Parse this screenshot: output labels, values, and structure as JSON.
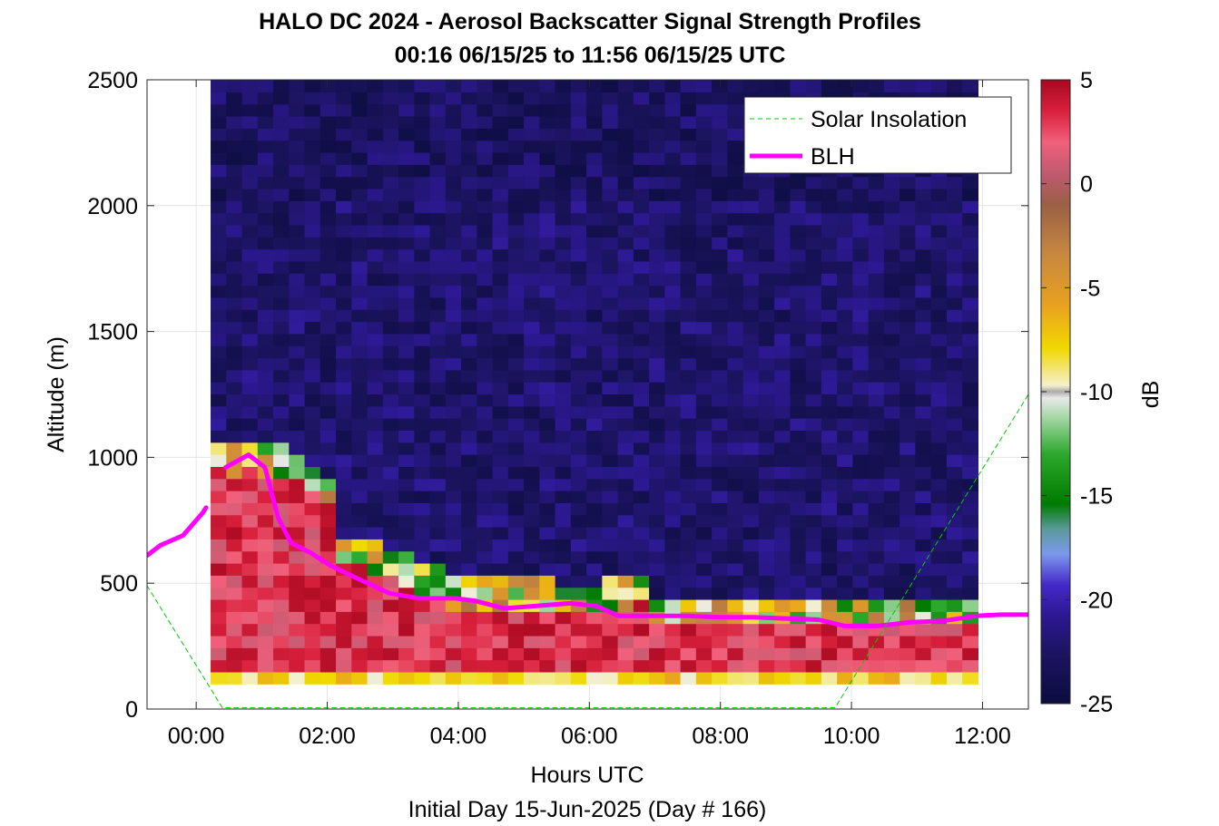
{
  "chart_data": {
    "type": "heatmap",
    "title": "HALO DC 2024 - Aerosol Backscatter Signal Strength Profiles",
    "subtitle": "00:16 06/15/25 to 11:56 06/15/25  UTC",
    "xlabel": "Hours UTC",
    "x_sublabel": "Initial Day 15-Jun-2025 (Day # 166)",
    "ylabel": "Altitude (m)",
    "xlim": [
      -0.75,
      12.7
    ],
    "ylim": [
      0,
      2500
    ],
    "x_ticks": [
      0,
      2,
      4,
      6,
      8,
      10,
      12
    ],
    "x_tick_labels": [
      "00:00",
      "02:00",
      "04:00",
      "06:00",
      "08:00",
      "10:00",
      "12:00"
    ],
    "y_ticks": [
      0,
      500,
      1000,
      1500,
      2000,
      2500
    ],
    "y_tick_labels": [
      "0",
      "500",
      "1000",
      "1500",
      "2000",
      "2500"
    ],
    "grid": true,
    "colorbar": {
      "label": "dB",
      "range": [
        -25,
        5
      ],
      "ticks": [
        5,
        0,
        -5,
        -10,
        -15,
        -20,
        -25
      ],
      "tick_labels": [
        "5",
        "0",
        "-5",
        "-10",
        "-15",
        "-20",
        "-25"
      ]
    },
    "legend": {
      "placement": "top-right",
      "entries": [
        "Solar Insolation",
        "BLH"
      ]
    },
    "heatmap": {
      "x_start": 0.22,
      "x_end": 11.93,
      "columns": 49,
      "y_bottom": 100,
      "y_top": 2500,
      "bins": 50,
      "bin_height_m": 48,
      "boundary_layer_top_m": [
        1020,
        1000,
        1010,
        1000,
        980,
        960,
        920,
        880,
        640,
        620,
        600,
        580,
        560,
        520,
        500,
        470,
        470,
        470,
        470,
        460,
        460,
        470,
        440,
        440,
        440,
        450,
        460,
        480,
        400,
        400,
        380,
        380,
        380,
        380,
        380,
        380,
        380,
        380,
        380,
        380,
        380,
        380,
        380,
        380,
        380,
        380,
        380,
        380,
        380
      ],
      "surface_bin_db": -8,
      "low_level_db": 2
    },
    "series": [
      {
        "name": "BLH",
        "color": "#ff00ff",
        "x": [
          -0.75,
          -0.55,
          -0.2,
          0.1,
          0.15
        ],
        "y": [
          610,
          650,
          690,
          780,
          800
        ]
      },
      {
        "name": "BLH",
        "color": "#ff00ff",
        "x": [
          0.45,
          0.8,
          1.05,
          1.25,
          1.45,
          1.75,
          2.05,
          2.45,
          2.95,
          3.4,
          3.95,
          4.25,
          4.7,
          5.2,
          5.7,
          6.1,
          6.45,
          7.0,
          7.5,
          8.0,
          8.5,
          9.0,
          9.5,
          9.9,
          10.4,
          10.9,
          11.4,
          11.9,
          12.3,
          12.7
        ],
        "y": [
          960,
          1010,
          960,
          760,
          660,
          620,
          570,
          520,
          460,
          440,
          440,
          430,
          400,
          410,
          420,
          410,
          370,
          370,
          370,
          365,
          365,
          360,
          355,
          330,
          330,
          345,
          350,
          370,
          375,
          375
        ]
      },
      {
        "name": "Solar Insolation",
        "color": "#00cc00",
        "style": "dashed",
        "x": [
          -0.75,
          0.4,
          9.75,
          12.7
        ],
        "y": [
          490,
          5,
          5,
          1250
        ]
      }
    ]
  }
}
